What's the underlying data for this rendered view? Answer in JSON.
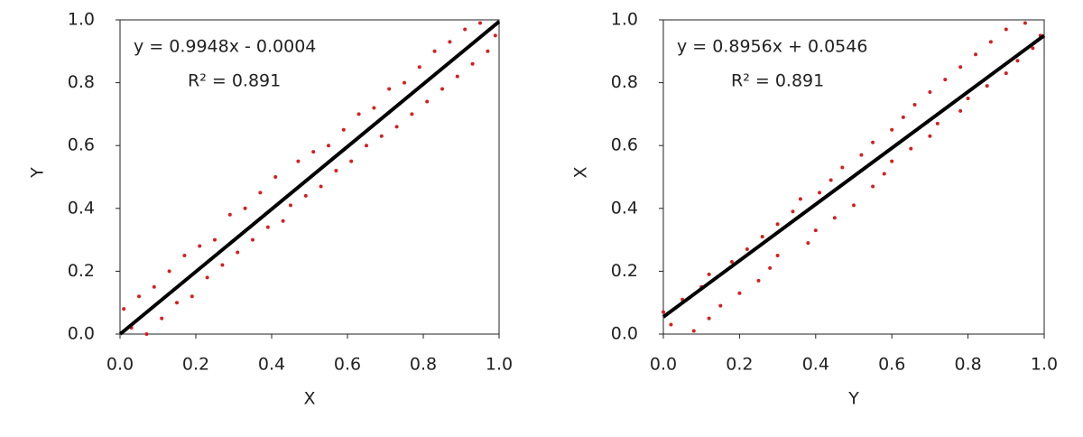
{
  "chart_data": [
    {
      "type": "scatter",
      "x_label": "X",
      "y_label": "Y",
      "color": "#d42020",
      "xlim": [
        0,
        1
      ],
      "ylim": [
        0,
        1
      ],
      "xticks": [
        {
          "value": 0,
          "label": "0.0"
        },
        0.2,
        0.4,
        0.6,
        0.8,
        {
          "value": 1,
          "label": "1.0"
        }
      ],
      "yticks": [
        {
          "value": 0,
          "label": "0.0"
        },
        0.2,
        0.4,
        0.6,
        0.8,
        {
          "value": 1,
          "label": "1.0"
        }
      ],
      "x": [
        0.01,
        0.03,
        0.05,
        0.07,
        0.09,
        0.11,
        0.13,
        0.15,
        0.17,
        0.19,
        0.21,
        0.23,
        0.25,
        0.27,
        0.29,
        0.31,
        0.33,
        0.35,
        0.37,
        0.39,
        0.41,
        0.43,
        0.45,
        0.47,
        0.49,
        0.51,
        0.53,
        0.55,
        0.57,
        0.59,
        0.61,
        0.63,
        0.65,
        0.67,
        0.69,
        0.71,
        0.73,
        0.75,
        0.77,
        0.79,
        0.81,
        0.83,
        0.85,
        0.87,
        0.89,
        0.91,
        0.93,
        0.95,
        0.97,
        0.99
      ],
      "values": [
        0.08,
        0.02,
        0.12,
        0.0,
        0.15,
        0.05,
        0.2,
        0.1,
        0.25,
        0.12,
        0.28,
        0.18,
        0.3,
        0.22,
        0.38,
        0.26,
        0.4,
        0.3,
        0.45,
        0.34,
        0.5,
        0.36,
        0.41,
        0.55,
        0.44,
        0.58,
        0.47,
        0.6,
        0.52,
        0.65,
        0.55,
        0.7,
        0.6,
        0.72,
        0.63,
        0.78,
        0.66,
        0.8,
        0.7,
        0.85,
        0.74,
        0.9,
        0.78,
        0.93,
        0.82,
        0.97,
        0.86,
        0.99,
        0.9,
        0.95
      ],
      "trendline": {
        "slope": 0.9948,
        "intercept": -0.0004,
        "equation": "y = 0.9948x - 0.0004",
        "r2_label": "R² = 0.891"
      }
    },
    {
      "type": "scatter",
      "x_label": "Y",
      "y_label": "X",
      "color": "#d42020",
      "xlim": [
        0,
        1
      ],
      "ylim": [
        0,
        1
      ],
      "xticks": [
        {
          "value": 0,
          "label": "0.0"
        },
        0.2,
        0.4,
        0.6,
        0.8,
        {
          "value": 1,
          "label": "1.0"
        }
      ],
      "yticks": [
        {
          "value": 0,
          "label": "0.0"
        },
        0.2,
        0.4,
        0.6,
        0.8,
        {
          "value": 1,
          "label": "1.0"
        }
      ],
      "x": [
        0.08,
        0.02,
        0.12,
        0.0,
        0.15,
        0.05,
        0.2,
        0.1,
        0.25,
        0.12,
        0.28,
        0.18,
        0.3,
        0.22,
        0.38,
        0.26,
        0.4,
        0.3,
        0.45,
        0.34,
        0.5,
        0.36,
        0.41,
        0.55,
        0.44,
        0.58,
        0.47,
        0.6,
        0.52,
        0.65,
        0.55,
        0.7,
        0.6,
        0.72,
        0.63,
        0.78,
        0.66,
        0.8,
        0.7,
        0.85,
        0.74,
        0.9,
        0.78,
        0.93,
        0.82,
        0.97,
        0.86,
        0.99,
        0.9,
        0.95
      ],
      "values": [
        0.01,
        0.03,
        0.05,
        0.07,
        0.09,
        0.11,
        0.13,
        0.15,
        0.17,
        0.19,
        0.21,
        0.23,
        0.25,
        0.27,
        0.29,
        0.31,
        0.33,
        0.35,
        0.37,
        0.39,
        0.41,
        0.43,
        0.45,
        0.47,
        0.49,
        0.51,
        0.53,
        0.55,
        0.57,
        0.59,
        0.61,
        0.63,
        0.65,
        0.67,
        0.69,
        0.71,
        0.73,
        0.75,
        0.77,
        0.79,
        0.81,
        0.83,
        0.85,
        0.87,
        0.89,
        0.91,
        0.93,
        0.95,
        0.97,
        0.99
      ],
      "trendline": {
        "slope": 0.8956,
        "intercept": 0.0546,
        "equation": "y = 0.8956x + 0.0546",
        "r2_label": "R² = 0.891"
      }
    }
  ]
}
